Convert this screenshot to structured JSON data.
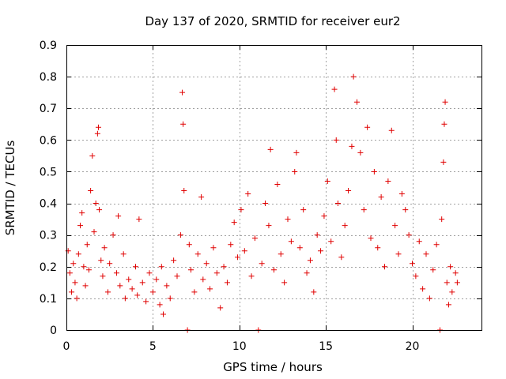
{
  "chart_data": {
    "type": "scatter",
    "title": "Day 137 of 2020, SRMTID for receiver eur2",
    "xlabel": "GPS time / hours",
    "ylabel": "SRMTID / TECUs",
    "xlim": [
      0,
      24
    ],
    "ylim": [
      0,
      0.9
    ],
    "xticks": [
      0,
      5,
      10,
      15,
      20
    ],
    "yticks": [
      0,
      0.1,
      0.2,
      0.3,
      0.4,
      0.5,
      0.6,
      0.7,
      0.8,
      0.9
    ],
    "xtick_labels": [
      "0",
      "5",
      "10",
      "15",
      "20"
    ],
    "ytick_labels": [
      "0",
      "0.1",
      "0.2",
      "0.3",
      "0.4",
      "0.5",
      "0.6",
      "0.7",
      "0.8",
      "0.9"
    ],
    "grid": true,
    "marker": "+",
    "color": "#e00000",
    "series": [
      {
        "name": "SRMTID",
        "points": [
          [
            0.1,
            0.25
          ],
          [
            0.2,
            0.18
          ],
          [
            0.3,
            0.12
          ],
          [
            0.4,
            0.21
          ],
          [
            0.5,
            0.15
          ],
          [
            0.6,
            0.1
          ],
          [
            0.7,
            0.24
          ],
          [
            0.8,
            0.33
          ],
          [
            0.9,
            0.37
          ],
          [
            1.0,
            0.2
          ],
          [
            1.1,
            0.14
          ],
          [
            1.2,
            0.27
          ],
          [
            1.3,
            0.19
          ],
          [
            1.4,
            0.44
          ],
          [
            1.5,
            0.55
          ],
          [
            1.6,
            0.31
          ],
          [
            1.7,
            0.4
          ],
          [
            1.8,
            0.62
          ],
          [
            1.85,
            0.64
          ],
          [
            1.9,
            0.38
          ],
          [
            2.0,
            0.22
          ],
          [
            2.1,
            0.17
          ],
          [
            2.2,
            0.26
          ],
          [
            2.4,
            0.12
          ],
          [
            2.5,
            0.21
          ],
          [
            2.7,
            0.3
          ],
          [
            2.9,
            0.18
          ],
          [
            3.0,
            0.36
          ],
          [
            3.1,
            0.14
          ],
          [
            3.3,
            0.24
          ],
          [
            3.4,
            0.1
          ],
          [
            3.6,
            0.16
          ],
          [
            3.8,
            0.13
          ],
          [
            4.0,
            0.2
          ],
          [
            4.1,
            0.11
          ],
          [
            4.2,
            0.35
          ],
          [
            4.4,
            0.15
          ],
          [
            4.6,
            0.09
          ],
          [
            4.8,
            0.18
          ],
          [
            5.0,
            0.12
          ],
          [
            5.2,
            0.16
          ],
          [
            5.4,
            0.08
          ],
          [
            5.5,
            0.2
          ],
          [
            5.6,
            0.05
          ],
          [
            5.8,
            0.14
          ],
          [
            6.0,
            0.1
          ],
          [
            6.2,
            0.22
          ],
          [
            6.4,
            0.17
          ],
          [
            6.6,
            0.3
          ],
          [
            6.7,
            0.75
          ],
          [
            6.75,
            0.65
          ],
          [
            6.8,
            0.44
          ],
          [
            7.0,
            0.0
          ],
          [
            7.1,
            0.27
          ],
          [
            7.2,
            0.19
          ],
          [
            7.4,
            0.12
          ],
          [
            7.6,
            0.24
          ],
          [
            7.8,
            0.42
          ],
          [
            7.9,
            0.16
          ],
          [
            8.1,
            0.21
          ],
          [
            8.3,
            0.13
          ],
          [
            8.5,
            0.26
          ],
          [
            8.7,
            0.18
          ],
          [
            8.9,
            0.07
          ],
          [
            9.1,
            0.2
          ],
          [
            9.3,
            0.15
          ],
          [
            9.5,
            0.27
          ],
          [
            9.7,
            0.34
          ],
          [
            9.9,
            0.23
          ],
          [
            10.1,
            0.38
          ],
          [
            10.3,
            0.25
          ],
          [
            10.5,
            0.43
          ],
          [
            10.7,
            0.17
          ],
          [
            10.9,
            0.29
          ],
          [
            11.1,
            0.0
          ],
          [
            11.3,
            0.21
          ],
          [
            11.5,
            0.4
          ],
          [
            11.7,
            0.33
          ],
          [
            11.8,
            0.57
          ],
          [
            12.0,
            0.19
          ],
          [
            12.2,
            0.46
          ],
          [
            12.4,
            0.24
          ],
          [
            12.6,
            0.15
          ],
          [
            12.8,
            0.35
          ],
          [
            13.0,
            0.28
          ],
          [
            13.2,
            0.5
          ],
          [
            13.3,
            0.56
          ],
          [
            13.5,
            0.26
          ],
          [
            13.7,
            0.38
          ],
          [
            13.9,
            0.18
          ],
          [
            14.1,
            0.22
          ],
          [
            14.3,
            0.12
          ],
          [
            14.5,
            0.3
          ],
          [
            14.7,
            0.25
          ],
          [
            14.9,
            0.36
          ],
          [
            15.1,
            0.47
          ],
          [
            15.3,
            0.28
          ],
          [
            15.5,
            0.76
          ],
          [
            15.6,
            0.6
          ],
          [
            15.7,
            0.4
          ],
          [
            15.9,
            0.23
          ],
          [
            16.1,
            0.33
          ],
          [
            16.3,
            0.44
          ],
          [
            16.5,
            0.58
          ],
          [
            16.6,
            0.8
          ],
          [
            16.8,
            0.72
          ],
          [
            17.0,
            0.56
          ],
          [
            17.2,
            0.38
          ],
          [
            17.4,
            0.64
          ],
          [
            17.6,
            0.29
          ],
          [
            17.8,
            0.5
          ],
          [
            18.0,
            0.26
          ],
          [
            18.2,
            0.42
          ],
          [
            18.4,
            0.2
          ],
          [
            18.6,
            0.47
          ],
          [
            18.8,
            0.63
          ],
          [
            19.0,
            0.33
          ],
          [
            19.2,
            0.24
          ],
          [
            19.4,
            0.43
          ],
          [
            19.6,
            0.38
          ],
          [
            19.8,
            0.3
          ],
          [
            20.0,
            0.21
          ],
          [
            20.2,
            0.17
          ],
          [
            20.4,
            0.28
          ],
          [
            20.6,
            0.13
          ],
          [
            20.8,
            0.24
          ],
          [
            21.0,
            0.1
          ],
          [
            21.2,
            0.19
          ],
          [
            21.4,
            0.27
          ],
          [
            21.6,
            0.0
          ],
          [
            21.7,
            0.35
          ],
          [
            21.8,
            0.53
          ],
          [
            21.85,
            0.65
          ],
          [
            21.9,
            0.72
          ],
          [
            22.0,
            0.15
          ],
          [
            22.1,
            0.08
          ],
          [
            22.2,
            0.2
          ],
          [
            22.3,
            0.12
          ],
          [
            22.5,
            0.18
          ],
          [
            22.6,
            0.15
          ]
        ]
      }
    ]
  }
}
